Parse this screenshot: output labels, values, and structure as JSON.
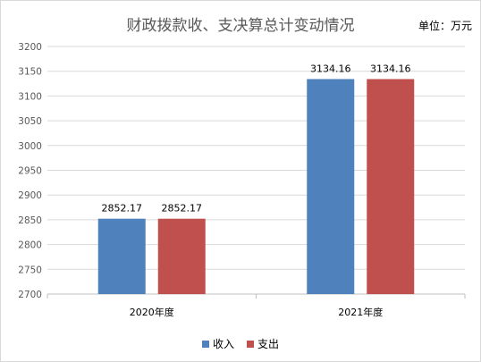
{
  "chart_data": {
    "type": "bar",
    "title": "财政拨款收、支决算总计变动情况",
    "unit_label": "单位：万元",
    "categories": [
      "2020年度",
      "2021年度"
    ],
    "series": [
      {
        "name": "收入",
        "values": [
          2852.17,
          3134.16
        ],
        "color": "#4f81bd"
      },
      {
        "name": "支出",
        "values": [
          2852.17,
          3134.16
        ],
        "color": "#c0504d"
      }
    ],
    "data_labels": [
      [
        "2852.17",
        "3134.16"
      ],
      [
        "2852.17",
        "3134.16"
      ]
    ],
    "ylim": [
      2700,
      3200
    ],
    "yticks": [
      2700,
      2750,
      2800,
      2850,
      2900,
      2950,
      3000,
      3050,
      3100,
      3150,
      3200
    ],
    "grid": true,
    "legend_position": "bottom"
  }
}
